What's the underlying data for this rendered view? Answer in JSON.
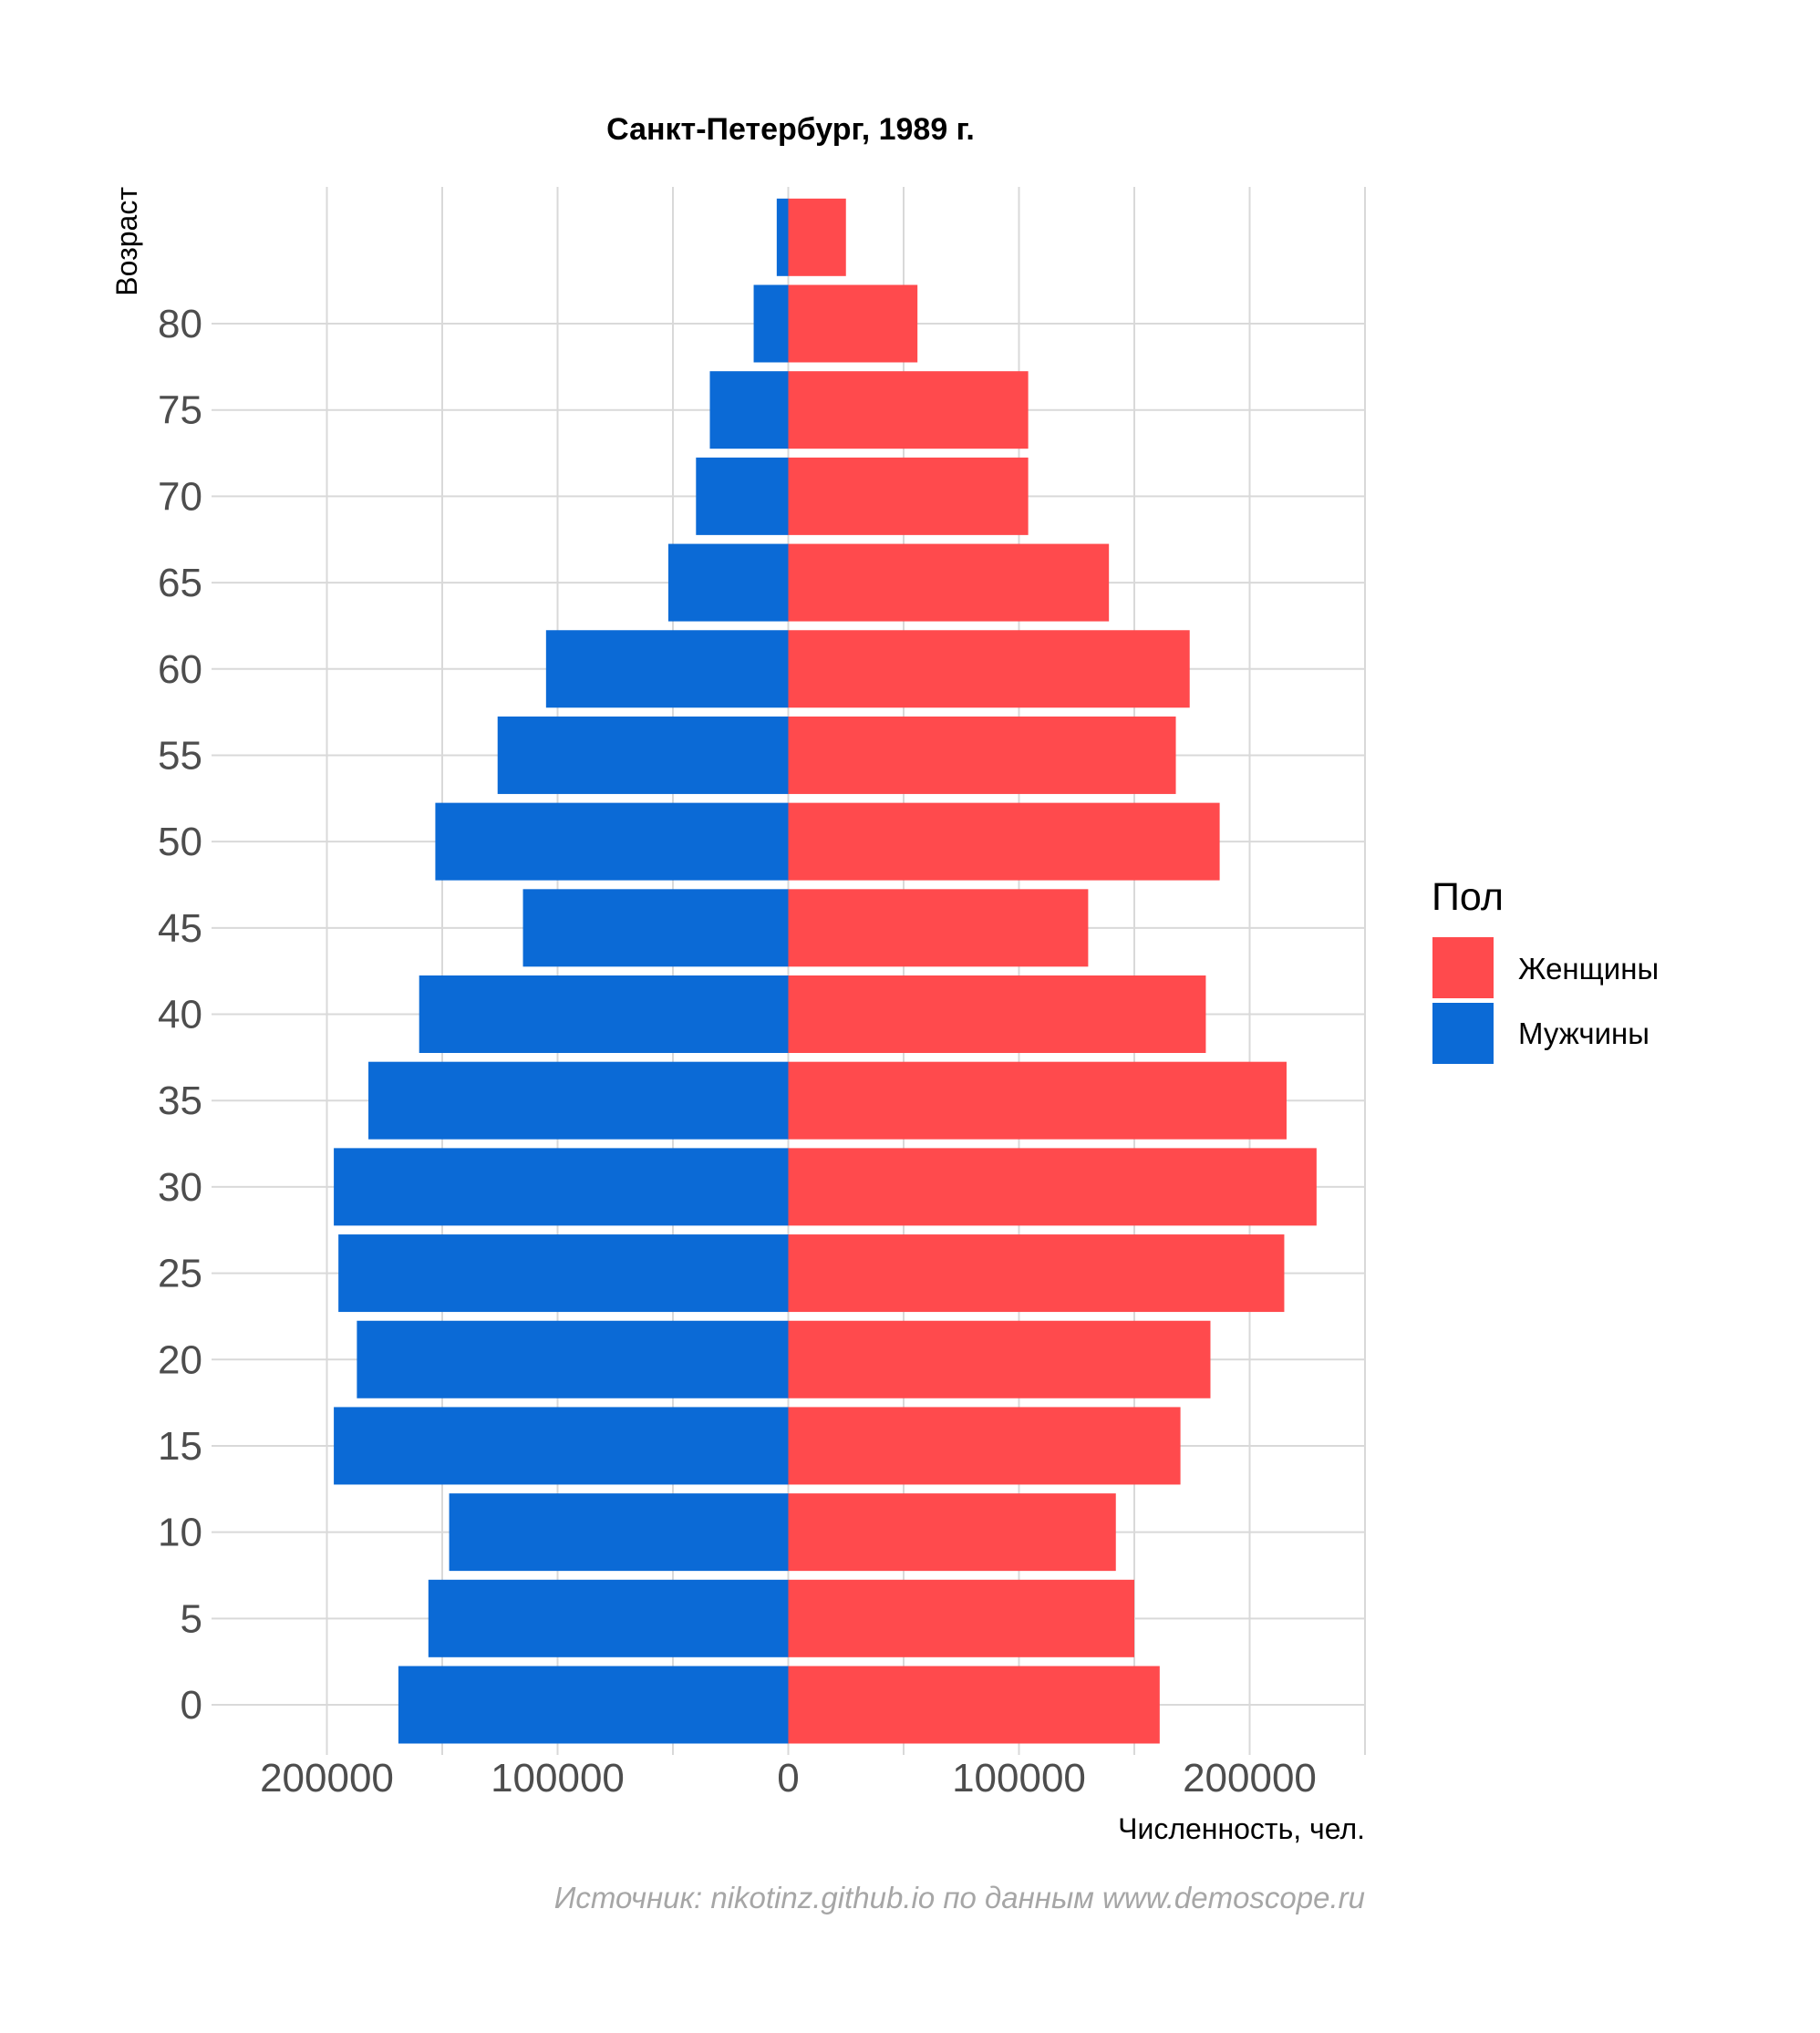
{
  "chart_data": {
    "type": "bar",
    "orientation": "horizontal-population-pyramid",
    "title": "Санкт-Петербург, 1989 г.",
    "xlabel": "Численность, чел.",
    "ylabel": "Возраст",
    "caption": "Источник: nikotinz.github.io по данным www.demoscope.ru",
    "xlim": [
      -250000,
      250000
    ],
    "x_ticks": [
      -200000,
      -100000,
      0,
      100000,
      200000
    ],
    "x_tick_labels": [
      "200000",
      "100000",
      "0",
      "100000",
      "200000"
    ],
    "y_ticks": [
      0,
      5,
      10,
      15,
      20,
      25,
      30,
      35,
      40,
      45,
      50,
      55,
      60,
      65,
      70,
      75,
      80
    ],
    "y_tick_labels": [
      "0",
      "5",
      "10",
      "15",
      "20",
      "25",
      "30",
      "35",
      "40",
      "45",
      "50",
      "55",
      "60",
      "65",
      "70",
      "75",
      "80"
    ],
    "categories": [
      0,
      5,
      10,
      15,
      20,
      25,
      30,
      35,
      40,
      45,
      50,
      55,
      60,
      65,
      70,
      75,
      80,
      85
    ],
    "series": [
      {
        "name": "Женщины",
        "color": "#ff4a4d",
        "values": [
          161000,
          150000,
          142000,
          170000,
          183000,
          215000,
          229000,
          216000,
          181000,
          130000,
          187000,
          168000,
          174000,
          139000,
          104000,
          104000,
          56000,
          25000
        ]
      },
      {
        "name": "Мужчины",
        "color": "#0b6ad6",
        "values": [
          169000,
          156000,
          147000,
          197000,
          187000,
          195000,
          197000,
          182000,
          160000,
          115000,
          153000,
          126000,
          105000,
          52000,
          40000,
          34000,
          15000,
          5000
        ]
      }
    ],
    "grid": true,
    "legend": {
      "title": "Пол",
      "position": "right"
    }
  }
}
